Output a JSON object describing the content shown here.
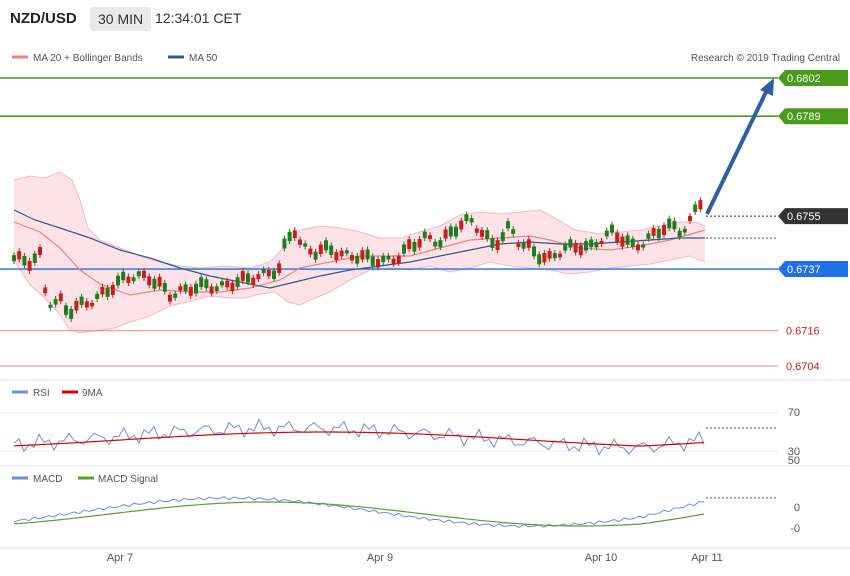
{
  "header": {
    "symbol": "NZD/USD",
    "timeframe": "30 MIN",
    "clock": "12:34:01 CET"
  },
  "main_panel": {
    "legend": [
      {
        "label": "MA 20 + Bollinger Bands",
        "color": "#f08080"
      },
      {
        "label": "MA 50",
        "color": "#2f5b8c"
      }
    ],
    "copyright": "Research © 2019 Trading Central",
    "levels": [
      {
        "value": "0.6802",
        "kind": "target",
        "color": "#4a9a1c"
      },
      {
        "value": "0.6789",
        "kind": "target",
        "color": "#4a9a1c"
      },
      {
        "value": "0.6755",
        "kind": "current",
        "color": "#333333"
      },
      {
        "value": "0.6737",
        "kind": "pivot",
        "color": "#1f6fe8"
      },
      {
        "value": "0.6716",
        "kind": "support",
        "color": "#f08080"
      },
      {
        "value": "0.6704",
        "kind": "support",
        "color": "#f08080"
      }
    ],
    "up_color": "#1e7d1e",
    "down_color": "#c81e1e",
    "arrow_color": "#2f5f9c"
  },
  "rsi_panel": {
    "legend": [
      {
        "label": "RSI",
        "color": "#6d8fd9"
      },
      {
        "label": "9MA",
        "color": "#e00000"
      }
    ],
    "ticks": [
      "70",
      "50",
      "30"
    ]
  },
  "macd_panel": {
    "legend": [
      {
        "label": "MACD",
        "color": "#6d8fd9"
      },
      {
        "label": "MACD Signal",
        "color": "#5aa02c"
      }
    ],
    "ticks": [
      "0",
      "-0"
    ]
  },
  "x_axis": {
    "labels": [
      "Apr 7",
      "Apr 9",
      "Apr 10",
      "Apr 11"
    ]
  }
}
